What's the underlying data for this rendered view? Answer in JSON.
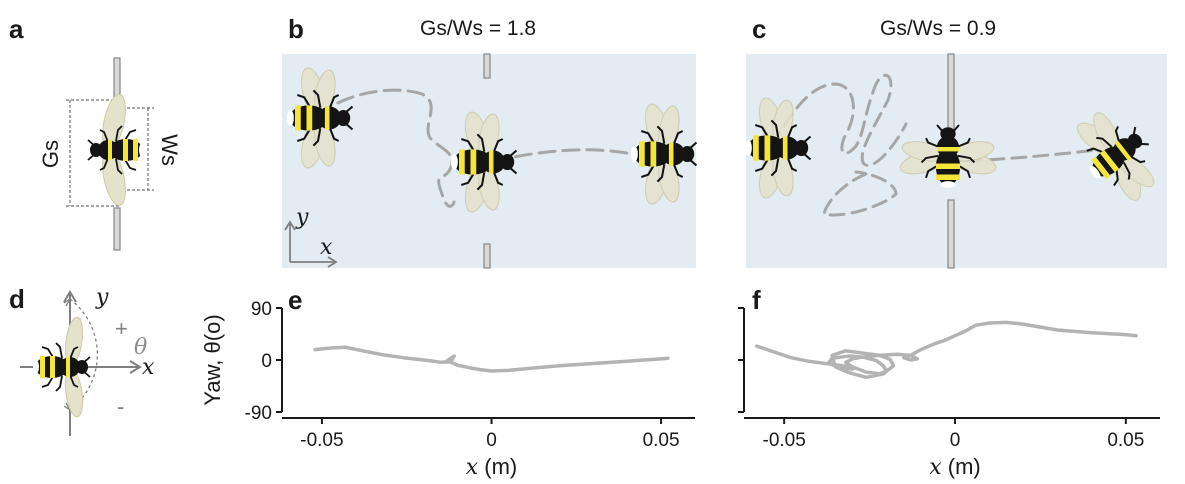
{
  "panels": {
    "a": {
      "letter": "a",
      "gs_label": "Gs",
      "ws_label": "Ws"
    },
    "b": {
      "letter": "b",
      "title": "Gs/Ws = 1.8",
      "axis_y": "y",
      "axis_x": "x"
    },
    "c": {
      "letter": "c",
      "title": "Gs/Ws = 0.9"
    },
    "d": {
      "letter": "d",
      "axis_y": "y",
      "axis_x": "x",
      "plus": "+",
      "theta": "θ",
      "minus": "-"
    },
    "e": {
      "letter": "e"
    },
    "f": {
      "letter": "f"
    }
  },
  "colors": {
    "arena": "#e3ecf2",
    "trajectory": "#a6a6a6",
    "yaw_line": "#b3b3b3",
    "bee_yellow": "#f3e53a",
    "bee_black": "#141414",
    "wing": "#e5e2cc"
  },
  "chart_data": [
    {
      "type": "line",
      "panel": "e",
      "ylabel": "Yaw, θ(o)",
      "xlabel": "x (m)",
      "xlim": [
        -0.06,
        0.06
      ],
      "ylim": [
        -90,
        90
      ],
      "yticks": [
        "90",
        "0",
        "-90"
      ],
      "xticks": [
        "-0.05",
        "0",
        "0.05"
      ],
      "series": [
        {
          "x": [
            -0.052,
            -0.047,
            -0.043,
            -0.038,
            -0.032,
            -0.026,
            -0.02,
            -0.017,
            -0.015,
            -0.012,
            -0.011,
            -0.013,
            -0.01,
            -0.006,
            -0.003,
            0.0,
            0.005,
            0.012,
            0.02,
            0.03,
            0.04,
            0.048,
            0.052
          ],
          "y": [
            18,
            21,
            22,
            16,
            9,
            4,
            0,
            -2,
            -4,
            -3,
            7,
            -1,
            -9,
            -14,
            -17,
            -19,
            -18,
            -14,
            -10,
            -6,
            -2,
            1,
            3
          ]
        }
      ]
    },
    {
      "type": "line",
      "panel": "f",
      "ylabel": "",
      "xlabel": "x (m)",
      "xlim": [
        -0.06,
        0.06
      ],
      "ylim": [
        -90,
        90
      ],
      "yticks": [
        "",
        "",
        ""
      ],
      "xticks": [
        "-0.05",
        "0",
        "0.05"
      ],
      "series": [
        {
          "x": [
            -0.058,
            -0.053,
            -0.048,
            -0.043,
            -0.038,
            -0.034,
            -0.031,
            -0.03,
            -0.034,
            -0.037,
            -0.036,
            -0.031,
            -0.027,
            -0.023,
            -0.021,
            -0.02,
            -0.022,
            -0.026,
            -0.03,
            -0.032,
            -0.03,
            -0.026,
            -0.022,
            -0.019,
            -0.018,
            -0.021,
            -0.026,
            -0.031,
            -0.035,
            -0.036,
            -0.032,
            -0.027,
            -0.022,
            -0.017,
            -0.013,
            -0.011,
            -0.013,
            -0.015,
            -0.013,
            -0.01,
            -0.006,
            -0.003,
            0.0,
            0.003,
            0.006,
            0.01,
            0.015,
            0.02,
            0.025,
            0.03,
            0.04,
            0.05,
            0.053
          ],
          "y": [
            24,
            14,
            4,
            -2,
            -6,
            -9,
            -12,
            -16,
            -13,
            -5,
            3,
            7,
            5,
            -1,
            -10,
            -19,
            -24,
            -21,
            -12,
            -4,
            2,
            6,
            8,
            1,
            -10,
            -24,
            -30,
            -22,
            -12,
            8,
            16,
            12,
            8,
            10,
            8,
            2,
            0,
            4,
            8,
            18,
            28,
            34,
            42,
            50,
            60,
            64,
            65,
            62,
            57,
            52,
            47,
            44,
            42
          ]
        }
      ]
    }
  ]
}
